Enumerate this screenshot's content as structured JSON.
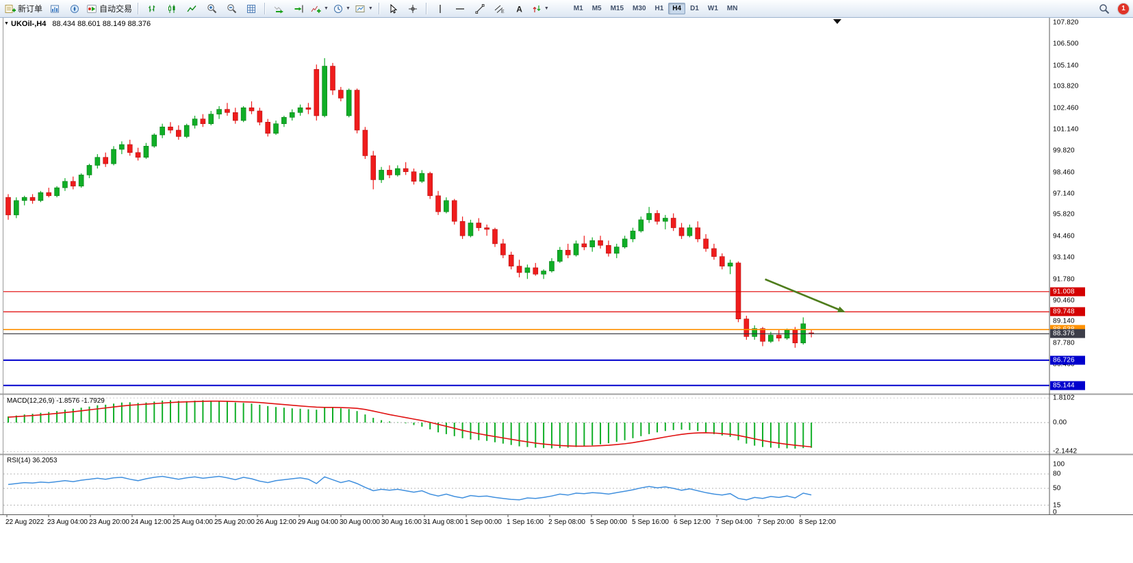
{
  "toolbar": {
    "new_order_label": "新订单",
    "auto_trading_label": "自动交易",
    "timeframes": [
      "M1",
      "M5",
      "M15",
      "M30",
      "H1",
      "H4",
      "D1",
      "W1",
      "MN"
    ],
    "active_timeframe": "H4",
    "notification_count": "1"
  },
  "window": {
    "title_symbol": "UKOil-,H4",
    "title_ohlc": "88.434 88.601 88.149 88.376"
  },
  "chart_data": {
    "type": "candlestick",
    "symbol": "UKOil-",
    "period": "H4",
    "ohlc_current": {
      "open": 88.434,
      "high": 88.601,
      "low": 88.149,
      "close": 88.376
    },
    "colors": {
      "up": "#0fae26",
      "up_dark": "#077a15",
      "down": "#ef1c1c",
      "down_dark": "#b30f0f",
      "macd_hist": "#0fae26",
      "macd_signal": "#e01010",
      "rsi_line": "#3f8fde",
      "arrow": "#4f7d1c"
    },
    "price_axis": {
      "labels": [
        "107.820",
        "106.500",
        "105.140",
        "103.820",
        "102.460",
        "101.140",
        "99.820",
        "98.460",
        "97.140",
        "95.820",
        "94.460",
        "93.140",
        "91.780",
        "90.460",
        "89.140",
        "87.780",
        "86.460"
      ]
    },
    "hlines": [
      {
        "value": 91.008,
        "label": "91.008",
        "color": "#e00000",
        "badge": "#d40000",
        "width": 1.2
      },
      {
        "value": 89.748,
        "label": "89.748",
        "color": "#e00000",
        "badge": "#d40000",
        "width": 1.2
      },
      {
        "value": 88.638,
        "label": "88.638",
        "color": "#ff9100",
        "badge": "#ff9100",
        "width": 1.6
      },
      {
        "value": 88.376,
        "label": "88.376",
        "color": "#2b2b33",
        "badge": "#3d3e49",
        "width": 1.2
      },
      {
        "value": 86.726,
        "label": "86.726",
        "color": "#0000cd",
        "badge": "#0000cd",
        "width": 2
      },
      {
        "value": 85.144,
        "label": "85.144",
        "color": "#0000cd",
        "badge": "#0000cd",
        "width": 2
      }
    ],
    "arrow": {
      "from_index": 93.3,
      "from_price": 91.78,
      "to_index": 103.2,
      "to_price": 89.72
    },
    "candles": [
      [
        96.9,
        97.1,
        95.5,
        95.8
      ],
      [
        95.8,
        96.9,
        95.6,
        96.7
      ],
      [
        96.7,
        97.0,
        96.4,
        96.9
      ],
      [
        96.9,
        97.1,
        96.5,
        96.7
      ],
      [
        96.7,
        97.3,
        96.6,
        97.2
      ],
      [
        97.2,
        97.5,
        96.9,
        97.0
      ],
      [
        97.0,
        97.6,
        96.9,
        97.5
      ],
      [
        97.5,
        98.1,
        97.3,
        97.9
      ],
      [
        97.9,
        98.2,
        97.4,
        97.6
      ],
      [
        97.6,
        98.4,
        97.5,
        98.3
      ],
      [
        98.3,
        99.0,
        98.1,
        98.9
      ],
      [
        98.9,
        99.6,
        98.7,
        99.4
      ],
      [
        99.4,
        99.7,
        98.8,
        99.0
      ],
      [
        99.0,
        100.1,
        98.9,
        99.9
      ],
      [
        99.9,
        100.4,
        99.6,
        100.2
      ],
      [
        100.2,
        100.5,
        99.5,
        99.7
      ],
      [
        99.7,
        100.0,
        99.2,
        99.4
      ],
      [
        99.4,
        100.3,
        99.3,
        100.1
      ],
      [
        100.1,
        100.9,
        100.0,
        100.8
      ],
      [
        100.8,
        101.5,
        100.6,
        101.3
      ],
      [
        101.3,
        101.6,
        100.9,
        101.1
      ],
      [
        101.1,
        101.4,
        100.5,
        100.7
      ],
      [
        100.7,
        101.5,
        100.6,
        101.4
      ],
      [
        101.4,
        102.0,
        101.2,
        101.8
      ],
      [
        101.8,
        102.1,
        101.3,
        101.5
      ],
      [
        101.5,
        102.3,
        101.4,
        102.1
      ],
      [
        102.1,
        102.6,
        101.8,
        102.4
      ],
      [
        102.4,
        102.8,
        102.0,
        102.2
      ],
      [
        102.2,
        102.5,
        101.5,
        101.7
      ],
      [
        101.7,
        102.6,
        101.6,
        102.5
      ],
      [
        102.5,
        102.9,
        102.1,
        102.3
      ],
      [
        102.3,
        102.5,
        101.4,
        101.6
      ],
      [
        101.6,
        101.8,
        100.7,
        100.9
      ],
      [
        100.9,
        101.7,
        100.8,
        101.5
      ],
      [
        101.5,
        102.0,
        101.3,
        101.9
      ],
      [
        101.9,
        102.4,
        101.7,
        102.2
      ],
      [
        102.2,
        102.7,
        102.0,
        102.5
      ],
      [
        102.5,
        102.8,
        102.1,
        102.4
      ],
      [
        104.9,
        105.2,
        101.7,
        102.0
      ],
      [
        102.0,
        105.6,
        101.9,
        105.1
      ],
      [
        105.1,
        105.3,
        103.3,
        103.6
      ],
      [
        103.6,
        103.8,
        102.9,
        103.1
      ],
      [
        102.0,
        103.7,
        101.9,
        103.6
      ],
      [
        103.6,
        103.7,
        100.9,
        101.1
      ],
      [
        101.1,
        101.3,
        99.3,
        99.5
      ],
      [
        99.5,
        99.8,
        97.4,
        98.0
      ],
      [
        98.0,
        98.8,
        97.8,
        98.6
      ],
      [
        98.6,
        98.9,
        98.1,
        98.3
      ],
      [
        98.3,
        98.9,
        98.2,
        98.7
      ],
      [
        98.7,
        99.1,
        98.3,
        98.5
      ],
      [
        98.5,
        98.7,
        97.7,
        97.9
      ],
      [
        97.9,
        98.6,
        97.8,
        98.4
      ],
      [
        98.4,
        98.5,
        96.8,
        97.0
      ],
      [
        97.0,
        97.3,
        95.8,
        96.0
      ],
      [
        96.0,
        96.9,
        95.9,
        96.7
      ],
      [
        96.7,
        96.8,
        95.2,
        95.4
      ],
      [
        95.4,
        95.7,
        94.3,
        94.5
      ],
      [
        94.5,
        95.5,
        94.4,
        95.3
      ],
      [
        95.3,
        95.6,
        94.8,
        95.0
      ],
      [
        95.0,
        95.2,
        94.5,
        94.9
      ],
      [
        94.9,
        95.0,
        93.8,
        94.0
      ],
      [
        94.0,
        94.3,
        93.1,
        93.3
      ],
      [
        93.3,
        93.5,
        92.4,
        92.6
      ],
      [
        92.6,
        93.0,
        91.9,
        92.2
      ],
      [
        92.2,
        92.7,
        91.8,
        92.5
      ],
      [
        92.5,
        92.8,
        92.0,
        92.1
      ],
      [
        92.1,
        92.4,
        91.8,
        92.3
      ],
      [
        92.3,
        93.1,
        92.2,
        92.9
      ],
      [
        92.9,
        93.8,
        92.8,
        93.6
      ],
      [
        93.6,
        94.0,
        93.1,
        93.3
      ],
      [
        93.3,
        94.2,
        93.2,
        94.0
      ],
      [
        94.0,
        94.5,
        93.6,
        93.8
      ],
      [
        93.8,
        94.4,
        93.5,
        94.2
      ],
      [
        94.2,
        94.5,
        93.7,
        93.9
      ],
      [
        93.9,
        94.2,
        93.2,
        93.4
      ],
      [
        93.4,
        94.0,
        93.1,
        93.8
      ],
      [
        93.8,
        94.5,
        93.7,
        94.3
      ],
      [
        94.3,
        95.0,
        94.1,
        94.8
      ],
      [
        94.8,
        95.7,
        94.7,
        95.5
      ],
      [
        95.5,
        96.3,
        95.3,
        95.9
      ],
      [
        95.9,
        96.1,
        95.2,
        95.4
      ],
      [
        95.4,
        95.8,
        94.9,
        95.6
      ],
      [
        95.6,
        95.9,
        94.8,
        95.0
      ],
      [
        95.0,
        95.3,
        94.3,
        94.5
      ],
      [
        94.5,
        95.2,
        94.4,
        95.0
      ],
      [
        95.0,
        95.4,
        94.1,
        94.3
      ],
      [
        94.3,
        94.6,
        93.5,
        93.7
      ],
      [
        93.7,
        94.0,
        93.0,
        93.2
      ],
      [
        93.2,
        93.4,
        92.4,
        92.6
      ],
      [
        92.6,
        93.0,
        92.1,
        92.8
      ],
      [
        92.8,
        92.9,
        89.1,
        89.3
      ],
      [
        89.3,
        89.5,
        88.0,
        88.2
      ],
      [
        88.2,
        88.9,
        88.0,
        88.7
      ],
      [
        88.7,
        88.8,
        87.6,
        87.9
      ],
      [
        87.9,
        88.5,
        87.8,
        88.3
      ],
      [
        88.3,
        88.6,
        87.9,
        88.1
      ],
      [
        88.1,
        88.7,
        88.0,
        88.6
      ],
      [
        88.6,
        88.8,
        87.5,
        87.8
      ],
      [
        87.8,
        89.4,
        87.7,
        89.0
      ],
      [
        88.434,
        88.601,
        88.149,
        88.376
      ]
    ],
    "time_labels": [
      "22 Aug 2022",
      "23 Aug 04:00",
      "23 Aug 20:00",
      "24 Aug 12:00",
      "25 Aug 04:00",
      "25 Aug 20:00",
      "26 Aug 12:00",
      "29 Aug 04:00",
      "30 Aug 00:00",
      "30 Aug 16:00",
      "31 Aug 08:00",
      "1 Sep 00:00",
      "1 Sep 16:00",
      "2 Sep 08:00",
      "5 Sep 00:00",
      "5 Sep 16:00",
      "6 Sep 12:00",
      "7 Sep 04:00",
      "7 Sep 20:00",
      "8 Sep 12:00"
    ],
    "macd": {
      "label": "MACD(12,26,9) -1.8576 -1.7929",
      "axis_labels": [
        "1.8102",
        "0.00",
        "-2.1442"
      ],
      "hist": [
        0.45,
        0.52,
        0.6,
        0.65,
        0.72,
        0.78,
        0.85,
        0.95,
        1.02,
        1.1,
        1.18,
        1.28,
        1.32,
        1.4,
        1.48,
        1.5,
        1.45,
        1.48,
        1.55,
        1.62,
        1.65,
        1.6,
        1.58,
        1.62,
        1.65,
        1.62,
        1.6,
        1.55,
        1.48,
        1.45,
        1.4,
        1.32,
        1.22,
        1.15,
        1.1,
        1.05,
        1.02,
        0.98,
        0.95,
        1.1,
        1.15,
        1.05,
        1.0,
        0.85,
        0.6,
        0.35,
        0.18,
        0.08,
        0.02,
        -0.05,
        -0.18,
        -0.3,
        -0.5,
        -0.72,
        -0.85,
        -1.0,
        -1.15,
        -1.25,
        -1.3,
        -1.35,
        -1.45,
        -1.55,
        -1.65,
        -1.75,
        -1.8,
        -1.85,
        -1.88,
        -1.9,
        -1.88,
        -1.85,
        -1.8,
        -1.75,
        -1.68,
        -1.6,
        -1.52,
        -1.42,
        -1.3,
        -1.15,
        -1.0,
        -0.85,
        -0.72,
        -0.62,
        -0.55,
        -0.52,
        -0.55,
        -0.62,
        -0.72,
        -0.85,
        -0.95,
        -1.05,
        -1.3,
        -1.55,
        -1.7,
        -1.8,
        -1.85,
        -1.88,
        -1.9,
        -1.92,
        -1.88,
        -1.8576
      ],
      "signal": [
        0.4,
        0.44,
        0.48,
        0.52,
        0.57,
        0.62,
        0.68,
        0.74,
        0.8,
        0.87,
        0.94,
        1.01,
        1.08,
        1.15,
        1.22,
        1.28,
        1.32,
        1.36,
        1.4,
        1.44,
        1.48,
        1.51,
        1.53,
        1.55,
        1.57,
        1.58,
        1.58,
        1.57,
        1.55,
        1.53,
        1.51,
        1.48,
        1.43,
        1.38,
        1.33,
        1.28,
        1.23,
        1.18,
        1.14,
        1.12,
        1.12,
        1.11,
        1.09,
        1.05,
        0.97,
        0.85,
        0.72,
        0.59,
        0.48,
        0.37,
        0.26,
        0.15,
        0.02,
        -0.13,
        -0.27,
        -0.42,
        -0.57,
        -0.7,
        -0.82,
        -0.93,
        -1.03,
        -1.13,
        -1.23,
        -1.33,
        -1.42,
        -1.51,
        -1.58,
        -1.64,
        -1.69,
        -1.72,
        -1.74,
        -1.74,
        -1.73,
        -1.7,
        -1.67,
        -1.62,
        -1.56,
        -1.48,
        -1.38,
        -1.28,
        -1.17,
        -1.06,
        -0.96,
        -0.87,
        -0.8,
        -0.76,
        -0.75,
        -0.77,
        -0.81,
        -0.86,
        -0.95,
        -1.07,
        -1.2,
        -1.32,
        -1.43,
        -1.52,
        -1.6,
        -1.67,
        -1.73,
        -1.7929
      ]
    },
    "rsi": {
      "label": "RSI(14) 36.2053",
      "axis_labels": [
        "100",
        "80",
        "50",
        "15",
        "0"
      ],
      "levels": [
        80,
        50,
        15
      ],
      "values": [
        58,
        60,
        62,
        61,
        63,
        62,
        64,
        66,
        64,
        67,
        69,
        71,
        69,
        72,
        73,
        69,
        66,
        70,
        73,
        75,
        72,
        69,
        72,
        74,
        71,
        73,
        75,
        72,
        68,
        73,
        70,
        65,
        62,
        66,
        68,
        70,
        72,
        69,
        60,
        74,
        68,
        62,
        66,
        60,
        52,
        45,
        48,
        46,
        48,
        45,
        42,
        45,
        38,
        34,
        38,
        33,
        30,
        35,
        33,
        34,
        31,
        29,
        27,
        26,
        30,
        29,
        31,
        34,
        38,
        36,
        40,
        39,
        41,
        40,
        38,
        41,
        44,
        47,
        51,
        54,
        51,
        53,
        50,
        46,
        49,
        45,
        41,
        38,
        36,
        39,
        29,
        26,
        31,
        29,
        33,
        31,
        34,
        30,
        40,
        36.2
      ]
    }
  }
}
